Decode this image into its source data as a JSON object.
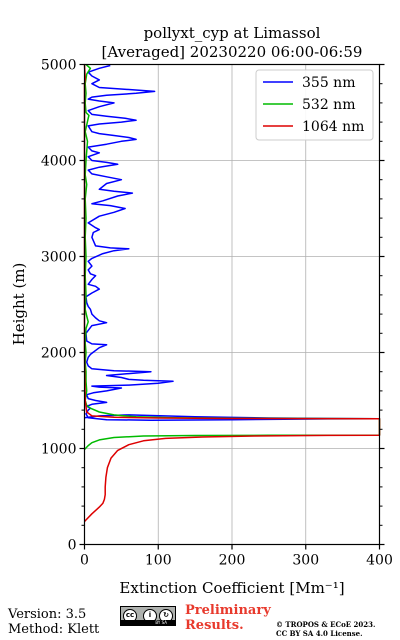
{
  "chart_data": {
    "type": "line",
    "title": "pollyxt_cyp at Limassol",
    "subtitle": "[Averaged] 20230220 06:00-06:59",
    "xlabel": "Extinction Coefficient [Mm⁻¹]",
    "ylabel": "Height (m)",
    "xlim": [
      0,
      400
    ],
    "ylim": [
      0,
      5000
    ],
    "xticks": [
      "0",
      "100",
      "200",
      "300",
      "400"
    ],
    "yticks": [
      "0",
      "1000",
      "2000",
      "3000",
      "4000",
      "5000"
    ],
    "grid": true,
    "legend_position": "top-right",
    "series": [
      {
        "name": "355 nm",
        "color": "#0000ff",
        "points": [
          [
            0,
            1320
          ],
          [
            20,
            1340
          ],
          [
            60,
            1350
          ],
          [
            150,
            1330
          ],
          [
            250,
            1318
          ],
          [
            330,
            1312
          ],
          [
            400,
            1310
          ],
          [
            330,
            1308
          ],
          [
            200,
            1300
          ],
          [
            90,
            1295
          ],
          [
            30,
            1300
          ],
          [
            5,
            1320
          ],
          [
            2,
            1360
          ],
          [
            5,
            1400
          ],
          [
            8,
            1420
          ],
          [
            3,
            1440
          ],
          [
            10,
            1460
          ],
          [
            30,
            1480
          ],
          [
            15,
            1500
          ],
          [
            5,
            1520
          ],
          [
            3,
            1560
          ],
          [
            12,
            1580
          ],
          [
            30,
            1600
          ],
          [
            50,
            1630
          ],
          [
            20,
            1640
          ],
          [
            10,
            1650
          ],
          [
            60,
            1660
          ],
          [
            100,
            1680
          ],
          [
            120,
            1700
          ],
          [
            80,
            1710
          ],
          [
            60,
            1720
          ],
          [
            50,
            1740
          ],
          [
            30,
            1760
          ],
          [
            60,
            1780
          ],
          [
            90,
            1800
          ],
          [
            40,
            1810
          ],
          [
            10,
            1830
          ],
          [
            5,
            1860
          ],
          [
            3,
            1900
          ],
          [
            5,
            1950
          ],
          [
            8,
            1980
          ],
          [
            20,
            2050
          ],
          [
            30,
            2080
          ],
          [
            10,
            2090
          ],
          [
            3,
            2120
          ],
          [
            2,
            2200
          ],
          [
            10,
            2280
          ],
          [
            30,
            2310
          ],
          [
            20,
            2330
          ],
          [
            15,
            2360
          ],
          [
            10,
            2400
          ],
          [
            8,
            2450
          ],
          [
            5,
            2480
          ],
          [
            3,
            2520
          ],
          [
            2,
            2580
          ],
          [
            10,
            2620
          ],
          [
            20,
            2660
          ],
          [
            15,
            2690
          ],
          [
            5,
            2710
          ],
          [
            10,
            2760
          ],
          [
            15,
            2800
          ],
          [
            8,
            2820
          ],
          [
            5,
            2860
          ],
          [
            10,
            2900
          ],
          [
            5,
            2950
          ],
          [
            10,
            2980
          ],
          [
            25,
            3030
          ],
          [
            40,
            3060
          ],
          [
            60,
            3080
          ],
          [
            35,
            3090
          ],
          [
            15,
            3110
          ],
          [
            10,
            3200
          ],
          [
            12,
            3250
          ],
          [
            20,
            3280
          ],
          [
            15,
            3300
          ],
          [
            5,
            3350
          ],
          [
            20,
            3420
          ],
          [
            40,
            3460
          ],
          [
            55,
            3500
          ],
          [
            35,
            3530
          ],
          [
            10,
            3550
          ],
          [
            25,
            3580
          ],
          [
            45,
            3630
          ],
          [
            65,
            3660
          ],
          [
            40,
            3680
          ],
          [
            20,
            3700
          ],
          [
            30,
            3760
          ],
          [
            50,
            3800
          ],
          [
            30,
            3830
          ],
          [
            10,
            3860
          ],
          [
            5,
            3900
          ],
          [
            20,
            3930
          ],
          [
            45,
            3960
          ],
          [
            30,
            3980
          ],
          [
            10,
            4000
          ],
          [
            5,
            4040
          ],
          [
            20,
            4080
          ],
          [
            10,
            4100
          ],
          [
            5,
            4140
          ],
          [
            30,
            4170
          ],
          [
            50,
            4200
          ],
          [
            70,
            4220
          ],
          [
            60,
            4240
          ],
          [
            40,
            4260
          ],
          [
            20,
            4280
          ],
          [
            10,
            4300
          ],
          [
            5,
            4360
          ],
          [
            20,
            4380
          ],
          [
            50,
            4400
          ],
          [
            70,
            4420
          ],
          [
            55,
            4440
          ],
          [
            30,
            4460
          ],
          [
            10,
            4480
          ],
          [
            5,
            4520
          ],
          [
            20,
            4560
          ],
          [
            40,
            4600
          ],
          [
            20,
            4620
          ],
          [
            5,
            4640
          ],
          [
            10,
            4660
          ],
          [
            30,
            4680
          ],
          [
            70,
            4700
          ],
          [
            95,
            4720
          ],
          [
            60,
            4740
          ],
          [
            20,
            4760
          ],
          [
            10,
            4800
          ],
          [
            20,
            4840
          ],
          [
            10,
            4880
          ],
          [
            5,
            4920
          ],
          [
            20,
            4960
          ],
          [
            35,
            4990
          ]
        ]
      },
      {
        "name": "532 nm",
        "color": "#00bb00",
        "points": [
          [
            0,
            990
          ],
          [
            5,
            1030
          ],
          [
            10,
            1060
          ],
          [
            20,
            1090
          ],
          [
            40,
            1115
          ],
          [
            80,
            1130
          ],
          [
            150,
            1135
          ],
          [
            250,
            1138
          ],
          [
            330,
            1139
          ],
          [
            400,
            1140
          ],
          [
            400,
            1310
          ],
          [
            300,
            1312
          ],
          [
            200,
            1316
          ],
          [
            120,
            1320
          ],
          [
            70,
            1330
          ],
          [
            40,
            1350
          ],
          [
            20,
            1380
          ],
          [
            8,
            1420
          ],
          [
            3,
            1450
          ],
          [
            1,
            1500
          ],
          [
            3,
            1600
          ],
          [
            2,
            1700
          ],
          [
            2,
            1800
          ],
          [
            1,
            1900
          ],
          [
            2,
            2000
          ],
          [
            1,
            2100
          ],
          [
            2,
            2250
          ],
          [
            5,
            2320
          ],
          [
            3,
            2380
          ],
          [
            1,
            2450
          ],
          [
            2,
            2600
          ],
          [
            1,
            2800
          ],
          [
            2,
            3000
          ],
          [
            1,
            3200
          ],
          [
            2,
            3400
          ],
          [
            1,
            3600
          ],
          [
            3,
            3750
          ],
          [
            1,
            3850
          ],
          [
            2,
            4000
          ],
          [
            4,
            4200
          ],
          [
            1,
            4300
          ],
          [
            5,
            4440
          ],
          [
            6,
            4470
          ],
          [
            2,
            4500
          ],
          [
            1,
            4600
          ],
          [
            2,
            4700
          ],
          [
            1,
            4800
          ],
          [
            3,
            4900
          ],
          [
            8,
            4960
          ],
          [
            2,
            5000
          ]
        ]
      },
      {
        "name": "1064 nm",
        "color": "#dd0000",
        "points": [
          [
            0,
            240
          ],
          [
            10,
            320
          ],
          [
            20,
            390
          ],
          [
            25,
            430
          ],
          [
            27,
            470
          ],
          [
            28,
            520
          ],
          [
            28,
            600
          ],
          [
            29,
            700
          ],
          [
            31,
            800
          ],
          [
            36,
            900
          ],
          [
            45,
            980
          ],
          [
            60,
            1040
          ],
          [
            80,
            1080
          ],
          [
            110,
            1105
          ],
          [
            160,
            1120
          ],
          [
            230,
            1130
          ],
          [
            330,
            1136
          ],
          [
            400,
            1138
          ],
          [
            400,
            1310
          ],
          [
            300,
            1311
          ],
          [
            200,
            1313
          ],
          [
            100,
            1318
          ],
          [
            40,
            1325
          ],
          [
            10,
            1340
          ],
          [
            3,
            1380
          ],
          [
            1,
            1500
          ],
          [
            0,
            2000
          ],
          [
            0,
            3000
          ],
          [
            0,
            4000
          ],
          [
            0,
            4800
          ],
          [
            1,
            4850
          ],
          [
            0,
            5000
          ]
        ]
      }
    ]
  },
  "footer": {
    "version": "Version: 3.5",
    "method": "Method: Klett",
    "preliminary_line1": "Preliminary",
    "preliminary_line2": "Results.",
    "copyright_line1": "© TROPOS & ECoE 2023.",
    "copyright_line2": "CC BY SA 4.0 License.",
    "license_badge": {
      "cc": "cc",
      "by": "BY",
      "sa": "SA"
    }
  }
}
